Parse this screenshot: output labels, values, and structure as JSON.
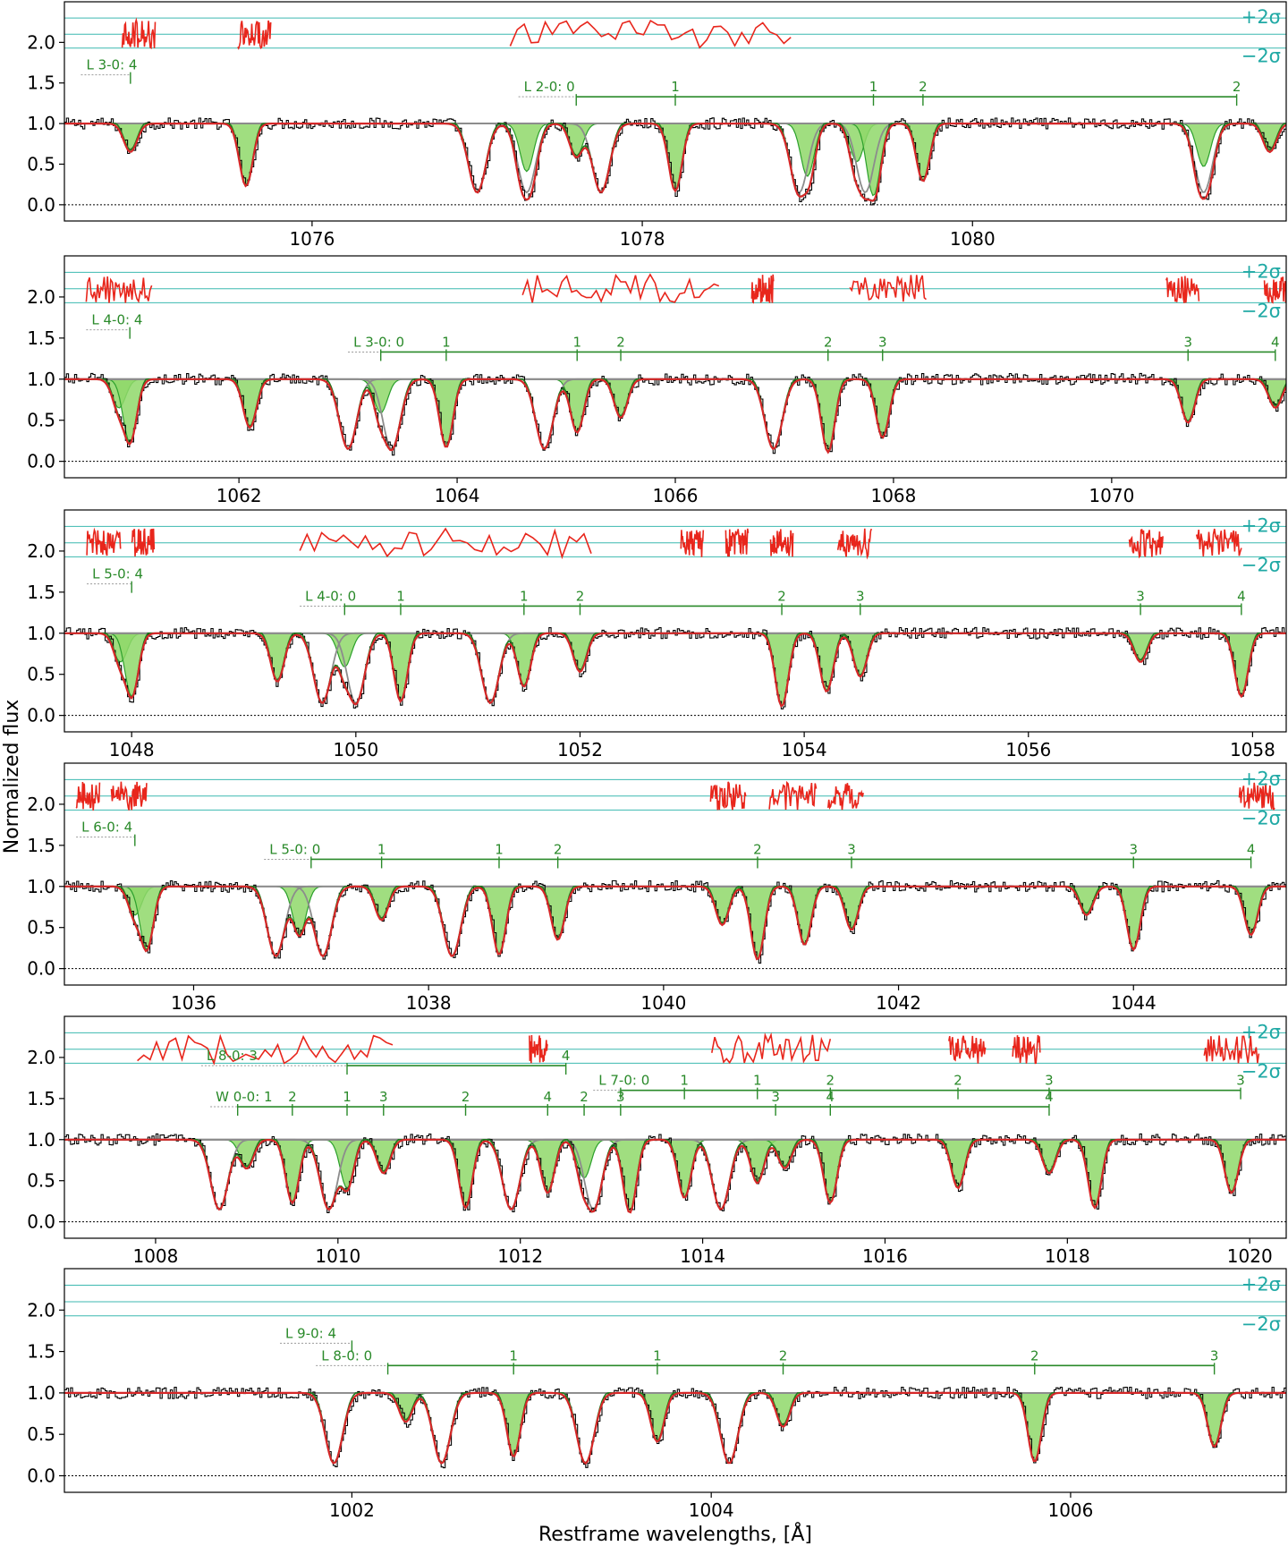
{
  "figure": {
    "xlabel": "Restframe wavelengths, [Å]",
    "ylabel": "Normalized flux"
  },
  "colors": {
    "data": "#000000",
    "model_total": "#d62728",
    "h2_component": "#2ca02c",
    "h2_fill": "#8fd86a",
    "other_component": "#8c8c8c",
    "sigma_lines": "#3cb9b0",
    "residuals": "#e8261c",
    "sigma_text": "#20a9a5",
    "label_text": "#2a8a2a"
  },
  "chart_data": [
    {
      "type": "line",
      "xlim": [
        1074.5,
        1081.9
      ],
      "ylim": [
        -0.2,
        2.5
      ],
      "xticks": [
        1076,
        1078,
        1080
      ],
      "yticks": [
        0.0,
        0.5,
        1.0,
        1.5,
        2.0
      ],
      "ytick_labels": [
        "0.0",
        "0.5",
        "1.0",
        "1.5",
        "2.0"
      ],
      "sigma_labels": [
        "+2σ",
        "−2σ"
      ],
      "absorption_lines": [
        1074.9,
        1075.6,
        1077.3,
        1077.6,
        1078.2,
        1079.0,
        1079.3,
        1079.4,
        1079.7,
        1081.4,
        1081.8
      ],
      "gray_lines": [
        1077.0,
        1077.3,
        1077.75,
        1078.95,
        1079.35,
        1081.4
      ],
      "label_rows": [
        {
          "label": "L 3-0: 4",
          "start": 1074.6,
          "ticks": [
            1074.9
          ]
        },
        {
          "label": "L 2-0: 0",
          "start": 1077.25,
          "ticks": [
            1077.6,
            1078.2,
            1079.4,
            1079.7,
            1081.6
          ],
          "tick_labels": [
            "0",
            "1",
            "1",
            "2",
            "2"
          ]
        }
      ],
      "residual_segments": [
        [
          1074.85,
          1075.05
        ],
        [
          1075.55,
          1075.75
        ],
        [
          1077.2,
          1078.9
        ]
      ]
    },
    {
      "type": "line",
      "xlim": [
        1060.4,
        1071.6
      ],
      "ylim": [
        -0.2,
        2.5
      ],
      "xticks": [
        1062,
        1064,
        1066,
        1068,
        1070
      ],
      "yticks": [
        0.0,
        0.5,
        1.0,
        1.5,
        2.0
      ],
      "ytick_labels": [
        "0.0",
        "0.5",
        "1.0",
        "1.5",
        "2.0"
      ],
      "sigma_labels": [
        "+2σ",
        "−2σ"
      ],
      "absorption_lines": [
        1060.9,
        1061.0,
        1062.1,
        1063.3,
        1063.9,
        1065.1,
        1065.5,
        1067.4,
        1067.9,
        1070.7,
        1071.5
      ],
      "gray_lines": [
        1063.0,
        1063.4,
        1064.8,
        1066.9
      ],
      "label_rows": [
        {
          "label": "L 4-0: 4",
          "start": 1060.6,
          "ticks": [
            1061.0
          ]
        },
        {
          "label": "L 3-0: 0",
          "start": 1063.0,
          "ticks": [
            1063.3,
            1063.9,
            1065.1,
            1065.5,
            1067.4,
            1067.9,
            1070.7,
            1071.5
          ],
          "tick_labels": [
            "0",
            "1",
            "1",
            "2",
            "2",
            "3",
            "3",
            "4"
          ]
        }
      ],
      "residual_segments": [
        [
          1060.6,
          1061.2
        ],
        [
          1064.6,
          1066.4
        ],
        [
          1066.7,
          1066.9
        ],
        [
          1067.6,
          1068.3
        ],
        [
          1070.5,
          1070.8
        ],
        [
          1071.4,
          1071.6
        ]
      ]
    },
    {
      "type": "line",
      "xlim": [
        1047.4,
        1058.3
      ],
      "ylim": [
        -0.2,
        2.5
      ],
      "xticks": [
        1048,
        1050,
        1052,
        1054,
        1056,
        1058
      ],
      "yticks": [
        0.0,
        0.5,
        1.0,
        1.5,
        2.0
      ],
      "ytick_labels": [
        "0.0",
        "0.5",
        "1.0",
        "1.5",
        "2.0"
      ],
      "sigma_labels": [
        "+2σ",
        "−2σ"
      ],
      "absorption_lines": [
        1047.9,
        1048.0,
        1049.3,
        1049.9,
        1050.4,
        1051.5,
        1052.0,
        1053.8,
        1054.2,
        1054.5,
        1057.0,
        1057.9
      ],
      "gray_lines": [
        1049.7,
        1050.0,
        1051.2
      ],
      "label_rows": [
        {
          "label": "L 5-0: 4",
          "start": 1047.6,
          "ticks": [
            1048.0
          ]
        },
        {
          "label": "L 4-0: 0",
          "start": 1049.5,
          "ticks": [
            1049.9,
            1050.4,
            1051.5,
            1052.0,
            1053.8,
            1054.5,
            1057.0,
            1057.9
          ],
          "tick_labels": [
            "0",
            "1",
            "1",
            "2",
            "2",
            "3",
            "3",
            "4"
          ]
        }
      ],
      "residual_segments": [
        [
          1047.6,
          1047.9
        ],
        [
          1048.0,
          1048.2
        ],
        [
          1049.5,
          1052.1
        ],
        [
          1052.9,
          1053.1
        ],
        [
          1053.3,
          1053.5
        ],
        [
          1053.7,
          1053.9
        ],
        [
          1054.3,
          1054.6
        ],
        [
          1056.9,
          1057.2
        ],
        [
          1057.5,
          1057.9
        ]
      ]
    },
    {
      "type": "line",
      "xlim": [
        1034.9,
        1045.3
      ],
      "ylim": [
        -0.2,
        2.5
      ],
      "xticks": [
        1036,
        1038,
        1040,
        1042,
        1044
      ],
      "yticks": [
        0.0,
        0.5,
        1.0,
        1.5,
        2.0
      ],
      "ytick_labels": [
        "0.0",
        "0.5",
        "1.0",
        "1.5",
        "2.0"
      ],
      "sigma_labels": [
        "+2σ",
        "−2σ"
      ],
      "absorption_lines": [
        1035.5,
        1035.6,
        1036.9,
        1037.6,
        1038.6,
        1039.1,
        1040.5,
        1040.8,
        1041.2,
        1041.6,
        1043.6,
        1044.0,
        1045.0
      ],
      "gray_lines": [
        1036.7,
        1037.1,
        1038.2
      ],
      "label_rows": [
        {
          "label": "L 6-0: 4",
          "start": 1035.0,
          "ticks": [
            1035.5
          ]
        },
        {
          "label": "L 5-0: 0",
          "start": 1036.6,
          "ticks": [
            1037.0,
            1037.6,
            1038.6,
            1039.1,
            1040.8,
            1041.6,
            1044.0,
            1045.0
          ],
          "tick_labels": [
            "0",
            "1",
            "1",
            "2",
            "2",
            "3",
            "3",
            "4"
          ]
        }
      ],
      "residual_segments": [
        [
          1035.0,
          1035.2
        ],
        [
          1035.3,
          1035.6
        ],
        [
          1040.4,
          1040.7
        ],
        [
          1040.9,
          1041.3
        ],
        [
          1041.4,
          1041.7
        ],
        [
          1044.9,
          1045.2
        ]
      ]
    },
    {
      "type": "line",
      "xlim": [
        1007.0,
        1020.4
      ],
      "ylim": [
        -0.2,
        2.5
      ],
      "xticks": [
        1008,
        1010,
        1012,
        1014,
        1016,
        1018,
        1020
      ],
      "yticks": [
        0.0,
        0.5,
        1.0,
        1.5,
        2.0
      ],
      "ytick_labels": [
        "0.0",
        "0.5",
        "1.0",
        "1.5",
        "2.0"
      ],
      "sigma_labels": [
        "+2σ",
        "−2σ"
      ],
      "absorption_lines": [
        1009.0,
        1009.5,
        1010.1,
        1010.5,
        1011.4,
        1012.3,
        1012.7,
        1013.2,
        1013.8,
        1014.6,
        1014.9,
        1015.4,
        1016.8,
        1017.8,
        1018.3,
        1019.8
      ],
      "gray_lines": [
        1008.7,
        1009.9,
        1011.9,
        1012.8,
        1014.2
      ],
      "label_rows": [
        {
          "label": "L 8-0: 3",
          "start": 1008.5,
          "ticks": [
            1010.1,
            1012.5
          ],
          "tick_labels": [
            "4",
            "4"
          ]
        },
        {
          "label": "L 7-0: 0",
          "start": 1012.8,
          "ticks": [
            1013.1,
            1013.8,
            1014.6,
            1015.4,
            1016.8,
            1017.8,
            1019.9
          ],
          "tick_labels": [
            "0",
            "1",
            "1",
            "2",
            "2",
            "3",
            "3"
          ]
        },
        {
          "label": "W 0-0: 1",
          "start": 1008.6,
          "ticks": [
            1008.9,
            1009.5,
            1010.1,
            1010.5,
            1011.4,
            1012.3,
            1012.7,
            1013.1,
            1014.8,
            1015.4,
            1017.8
          ],
          "tick_labels": [
            "0",
            "2",
            "1",
            "3",
            "2",
            "4",
            "2",
            "3",
            "3",
            "4",
            "4"
          ]
        }
      ],
      "residual_segments": [
        [
          1007.8,
          1010.6
        ],
        [
          1012.1,
          1012.3
        ],
        [
          1014.1,
          1015.4
        ],
        [
          1016.7,
          1017.1
        ],
        [
          1017.4,
          1017.7
        ],
        [
          1019.5,
          1020.1
        ]
      ]
    },
    {
      "type": "line",
      "xlim": [
        1000.4,
        1007.2
      ],
      "ylim": [
        -0.2,
        2.5
      ],
      "xticks": [
        1002,
        1004,
        1006
      ],
      "yticks": [
        0.0,
        0.5,
        1.0,
        1.5,
        2.0
      ],
      "ytick_labels": [
        "0.0",
        "0.5",
        "1.0",
        "1.5",
        "2.0"
      ],
      "sigma_labels": [
        "+2σ",
        "−2σ"
      ],
      "absorption_lines": [
        1002.3,
        1002.9,
        1003.7,
        1004.4,
        1005.8,
        1006.8
      ],
      "gray_lines": [
        1001.9,
        1002.5,
        1003.3,
        1004.1
      ],
      "label_rows": [
        {
          "label": "L 9-0: 4",
          "start": 1001.6,
          "ticks": [
            1002.0
          ]
        },
        {
          "label": "L 8-0: 0",
          "start": 1001.8,
          "ticks": [
            1002.2,
            1002.9,
            1003.7,
            1004.4,
            1005.8,
            1006.8
          ],
          "tick_labels": [
            "0",
            "1",
            "1",
            "2",
            "2",
            "3"
          ]
        }
      ],
      "residual_segments": []
    }
  ]
}
